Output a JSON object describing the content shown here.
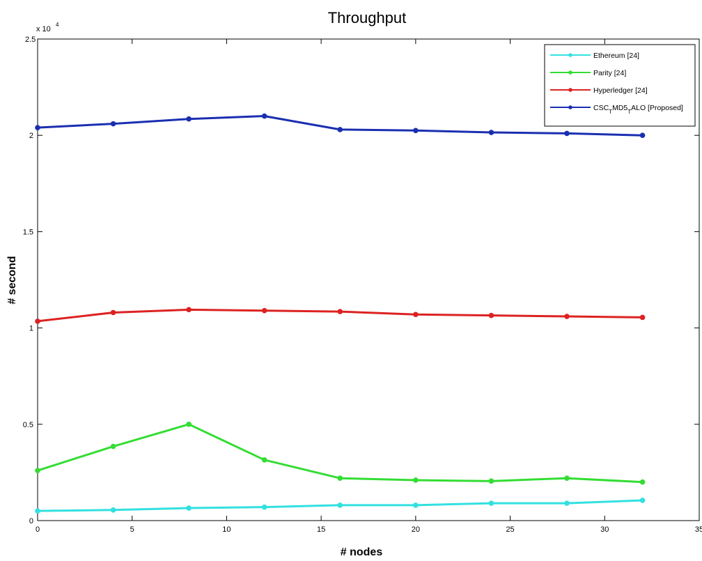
{
  "chart_data": {
    "type": "line",
    "title": "Throughput",
    "xlabel": "# nodes",
    "ylabel": "# second",
    "y_multiplier_base": "x 10",
    "y_multiplier_exp": "4",
    "xlim": [
      0,
      35
    ],
    "ylim": [
      0,
      2.5
    ],
    "xticks": [
      0,
      5,
      10,
      15,
      20,
      25,
      30,
      35
    ],
    "yticks": [
      0,
      0.5,
      1,
      1.5,
      2,
      2.5
    ],
    "ytick_labels": [
      "0",
      "0.5",
      "1",
      "1.5",
      "2",
      "2.5"
    ],
    "grid": false,
    "legend_position": "top-right",
    "x": [
      0,
      4,
      8,
      12,
      16,
      20,
      24,
      28,
      32
    ],
    "series": [
      {
        "name": "Ethereum [24]",
        "color": "#33e0e0",
        "values": [
          0.05,
          0.055,
          0.065,
          0.07,
          0.08,
          0.08,
          0.09,
          0.09,
          0.105
        ]
      },
      {
        "name": "Parity [24]",
        "color": "#33dd33",
        "values": [
          0.26,
          0.385,
          0.5,
          0.315,
          0.22,
          0.21,
          0.205,
          0.22,
          0.2
        ]
      },
      {
        "name": "Hyperledger [24]",
        "color": "#dd2222",
        "values": [
          1.035,
          1.08,
          1.095,
          1.09,
          1.085,
          1.07,
          1.065,
          1.06,
          1.055
        ]
      },
      {
        "name": "CSC_T MD5_T ALO [Proposed]",
        "color": "#1a2fb0",
        "values": [
          2.04,
          2.06,
          2.085,
          2.1,
          2.03,
          2.025,
          2.015,
          2.01,
          2.0
        ]
      }
    ],
    "legend_labels": {
      "ethereum": "Ethereum [24]",
      "parity": "Parity [24]",
      "hyperledger": "Hyperledger [24]",
      "proposed_a": "CSC",
      "proposed_sub1": "T",
      "proposed_b": "MD5",
      "proposed_sub2": "T",
      "proposed_c": "ALO [Proposed]"
    }
  }
}
